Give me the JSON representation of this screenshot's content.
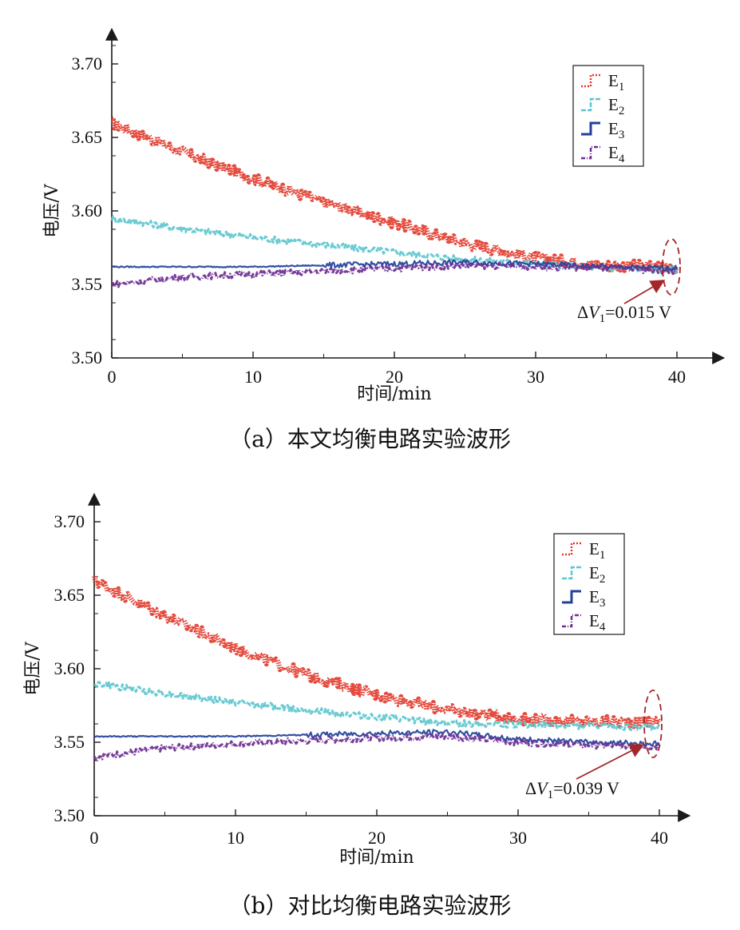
{
  "chart_data": [
    {
      "type": "line",
      "caption": "（a）本文均衡电路实验波形",
      "xlabel": "时间/min",
      "ylabel": "电压/V",
      "xlim": [
        0,
        40
      ],
      "ylim": [
        3.5,
        3.7
      ],
      "xticks": [
        0,
        10,
        20,
        30,
        40
      ],
      "yticks": [
        "3.50",
        "3.55",
        "3.60",
        "3.65",
        "3.70"
      ],
      "legend_position": "top-right",
      "series": [
        {
          "name": "E1",
          "color": "#e2392b",
          "style": "dotted",
          "x": [
            0,
            5,
            10,
            15,
            20,
            25,
            30,
            35,
            40
          ],
          "values": [
            3.66,
            3.64,
            3.622,
            3.606,
            3.592,
            3.578,
            3.568,
            3.563,
            3.562
          ]
        },
        {
          "name": "E2",
          "color": "#5ec7cf",
          "style": "dashed",
          "x": [
            0,
            5,
            10,
            15,
            20,
            25,
            30,
            35,
            40
          ],
          "values": [
            3.595,
            3.588,
            3.582,
            3.577,
            3.572,
            3.567,
            3.564,
            3.561,
            3.56
          ]
        },
        {
          "name": "E3",
          "color": "#22409a",
          "style": "solid",
          "x": [
            0,
            5,
            10,
            15,
            20,
            25,
            30,
            35,
            40
          ],
          "values": [
            3.562,
            3.562,
            3.562,
            3.563,
            3.564,
            3.565,
            3.564,
            3.562,
            3.561
          ]
        },
        {
          "name": "E4",
          "color": "#6d2e92",
          "style": "dashdot",
          "x": [
            0,
            5,
            10,
            15,
            20,
            25,
            30,
            35,
            40
          ],
          "values": [
            3.55,
            3.555,
            3.557,
            3.559,
            3.561,
            3.563,
            3.562,
            3.561,
            3.559
          ]
        }
      ],
      "annotation": {
        "text": "ΔV₁=0.015 V",
        "prefix": "Δ",
        "var": "V",
        "sub": "1",
        "rest": "=0.015 V",
        "x": 40,
        "y": 3.561
      }
    },
    {
      "type": "line",
      "caption": "（b）对比均衡电路实验波形",
      "xlabel": "时间/min",
      "ylabel": "电压/V",
      "xlim": [
        0,
        40
      ],
      "ylim": [
        3.5,
        3.7
      ],
      "xticks": [
        0,
        10,
        20,
        30,
        40
      ],
      "yticks": [
        "3.50",
        "3.55",
        "3.60",
        "3.65",
        "3.70"
      ],
      "legend_position": "top-right",
      "series": [
        {
          "name": "E1",
          "color": "#e2392b",
          "style": "dotted",
          "x": [
            0,
            5,
            10,
            15,
            20,
            25,
            30,
            35,
            40
          ],
          "values": [
            3.66,
            3.636,
            3.614,
            3.596,
            3.582,
            3.572,
            3.566,
            3.564,
            3.564
          ]
        },
        {
          "name": "E2",
          "color": "#5ec7cf",
          "style": "dashed",
          "x": [
            0,
            5,
            10,
            15,
            20,
            25,
            30,
            35,
            40
          ],
          "values": [
            3.59,
            3.583,
            3.577,
            3.572,
            3.567,
            3.563,
            3.562,
            3.561,
            3.56
          ]
        },
        {
          "name": "E3",
          "color": "#22409a",
          "style": "solid",
          "x": [
            0,
            5,
            10,
            15,
            20,
            25,
            30,
            35,
            40
          ],
          "values": [
            3.554,
            3.554,
            3.554,
            3.555,
            3.556,
            3.557,
            3.552,
            3.55,
            3.549
          ]
        },
        {
          "name": "E4",
          "color": "#6d2e92",
          "style": "dashdot",
          "x": [
            0,
            5,
            10,
            15,
            20,
            25,
            30,
            35,
            40
          ],
          "values": [
            3.54,
            3.546,
            3.549,
            3.551,
            3.553,
            3.554,
            3.55,
            3.548,
            3.547
          ]
        }
      ],
      "annotation": {
        "text": "ΔV₁=0.039 V",
        "prefix": "Δ",
        "var": "V",
        "sub": "1",
        "rest": "=0.039 V",
        "x": 40,
        "y": 3.555
      }
    }
  ]
}
